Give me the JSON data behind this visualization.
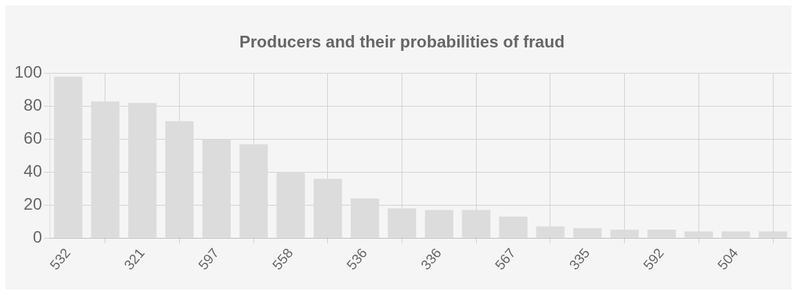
{
  "chart_data": {
    "type": "bar",
    "title": "Producers and their probabilities of fraud",
    "categories": [
      "532",
      null,
      "321",
      null,
      "597",
      null,
      "558",
      null,
      "536",
      null,
      "336",
      null,
      "567",
      null,
      "335",
      null,
      "592",
      null,
      "504",
      null
    ],
    "values": [
      98,
      83,
      82,
      71,
      60,
      57,
      40,
      36,
      24,
      18,
      17,
      17,
      13,
      7,
      6,
      5,
      5,
      4,
      4,
      4
    ],
    "color": "#dcdcdc",
    "ylim": [
      0,
      100
    ],
    "yticks": [
      0,
      20,
      40,
      60,
      80,
      100
    ],
    "grid": true
  }
}
